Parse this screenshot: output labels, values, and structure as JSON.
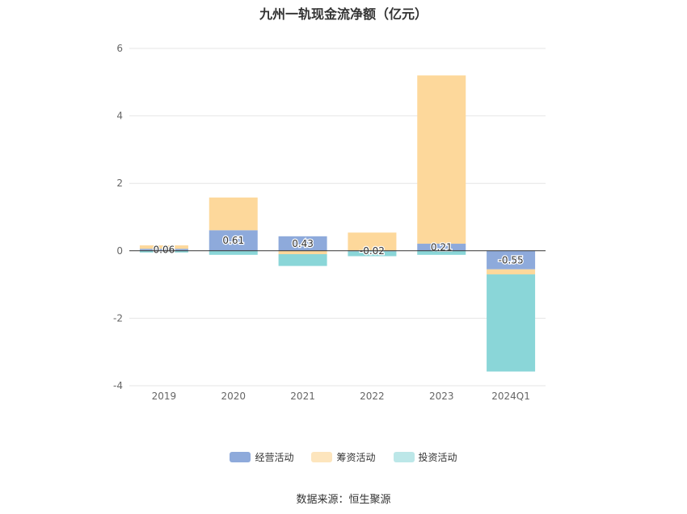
{
  "title": "九州一轨现金流净额（亿元）",
  "source": "数据来源：恒生聚源",
  "chart_data": {
    "type": "bar",
    "stacked": true,
    "categories": [
      "2019",
      "2020",
      "2021",
      "2022",
      "2023",
      "2024Q1"
    ],
    "ylim": [
      -4,
      6
    ],
    "yticks": [
      -4,
      -2,
      0,
      2,
      4,
      6
    ],
    "grid": true,
    "legend_position": "bottom",
    "series": [
      {
        "name": "经营活动",
        "color": "#8eaadb",
        "values": [
          0.06,
          0.61,
          0.43,
          -0.02,
          0.21,
          -0.55
        ],
        "labels": [
          "0.06",
          "0.61",
          "0.43",
          "-0.02",
          "0.21",
          "-0.55"
        ]
      },
      {
        "name": "筹资活动",
        "color": "#fdd89b",
        "values": [
          0.1,
          0.97,
          -0.1,
          0.54,
          4.99,
          -0.15
        ]
      },
      {
        "name": "投资活动",
        "color": "#8ad6d8",
        "values": [
          -0.05,
          -0.12,
          -0.35,
          -0.14,
          -0.12,
          -2.88
        ]
      }
    ]
  }
}
